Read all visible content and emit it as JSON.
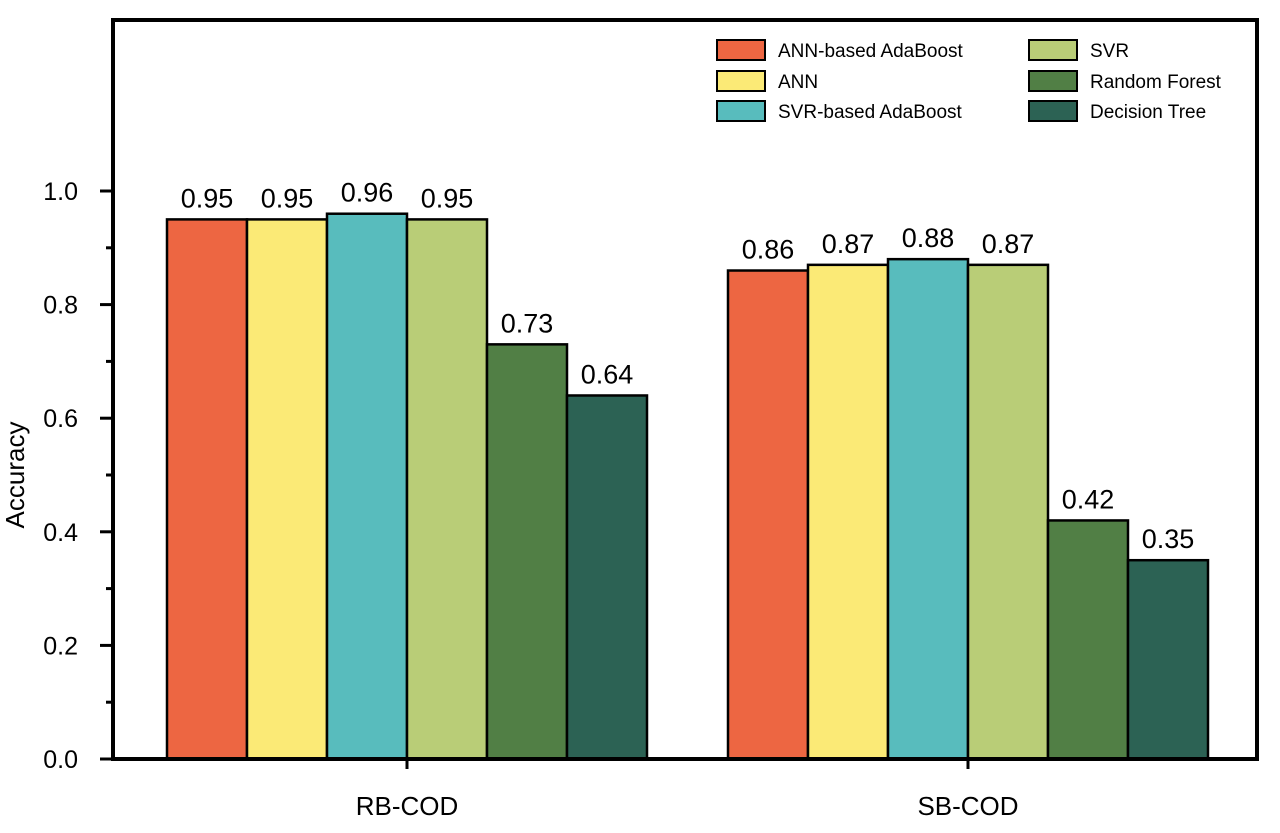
{
  "chart_data": {
    "type": "bar",
    "title": "",
    "xlabel": "",
    "ylabel": "Accuracy",
    "ylim": [
      0,
      1.2
    ],
    "yticks": [
      0.0,
      0.2,
      0.4,
      0.6,
      0.8,
      1.0
    ],
    "ytick_labels": [
      "0.0",
      "0.2",
      "0.4",
      "0.6",
      "0.8",
      "1.0"
    ],
    "categories": [
      "RB-COD",
      "SB-COD"
    ],
    "series": [
      {
        "name": "ANN-based AdaBoost",
        "color": "#ed6642",
        "values": [
          0.95,
          0.86
        ],
        "labels": [
          "0.95",
          "0.86"
        ]
      },
      {
        "name": "ANN",
        "color": "#fbea76",
        "values": [
          0.95,
          0.87
        ],
        "labels": [
          "0.95",
          "0.87"
        ]
      },
      {
        "name": "SVR-based AdaBoost",
        "color": "#58bcbd",
        "values": [
          0.96,
          0.88
        ],
        "labels": [
          "0.96",
          "0.88"
        ]
      },
      {
        "name": "SVR",
        "color": "#b9cd77",
        "values": [
          0.95,
          0.87
        ],
        "labels": [
          "0.95",
          "0.87"
        ]
      },
      {
        "name": "Random Forest",
        "color": "#517f45",
        "values": [
          0.73,
          0.42
        ],
        "labels": [
          "0.73",
          "0.42"
        ]
      },
      {
        "name": "Decision Tree",
        "color": "#2c6254",
        "values": [
          0.64,
          0.35
        ],
        "labels": [
          "0.64",
          "0.35"
        ]
      }
    ],
    "grid": false,
    "legend": {
      "position": "top-right",
      "columns": 2
    }
  }
}
